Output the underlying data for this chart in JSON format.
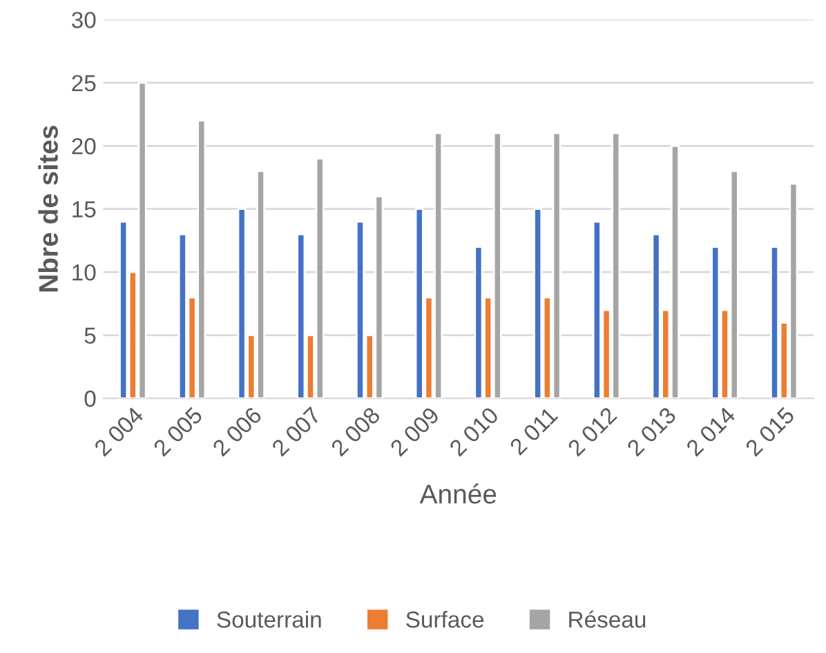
{
  "chart_data": {
    "type": "bar",
    "xlabel": "Année",
    "ylabel": "Nbre de sites",
    "categories": [
      "2 004",
      "2 005",
      "2 006",
      "2 007",
      "2 008",
      "2 009",
      "2 010",
      "2 011",
      "2 012",
      "2 013",
      "2 014",
      "2 015"
    ],
    "series": [
      {
        "name": "Souterrain",
        "color": "#4472c4",
        "values": [
          14,
          13,
          15,
          13,
          14,
          15,
          12,
          15,
          14,
          13,
          12,
          12
        ]
      },
      {
        "name": "Surface",
        "color": "#ed7d31",
        "values": [
          10,
          8,
          5,
          5,
          5,
          8,
          8,
          8,
          7,
          7,
          7,
          6
        ]
      },
      {
        "name": "Réseau",
        "color": "#a5a5a5",
        "values": [
          25,
          22,
          18,
          19,
          16,
          21,
          21,
          21,
          21,
          20,
          18,
          17
        ]
      }
    ],
    "ylim": [
      0,
      30
    ],
    "yticks": [
      0,
      5,
      10,
      15,
      20,
      25,
      30
    ],
    "grid": "y",
    "legend": "bottom"
  }
}
